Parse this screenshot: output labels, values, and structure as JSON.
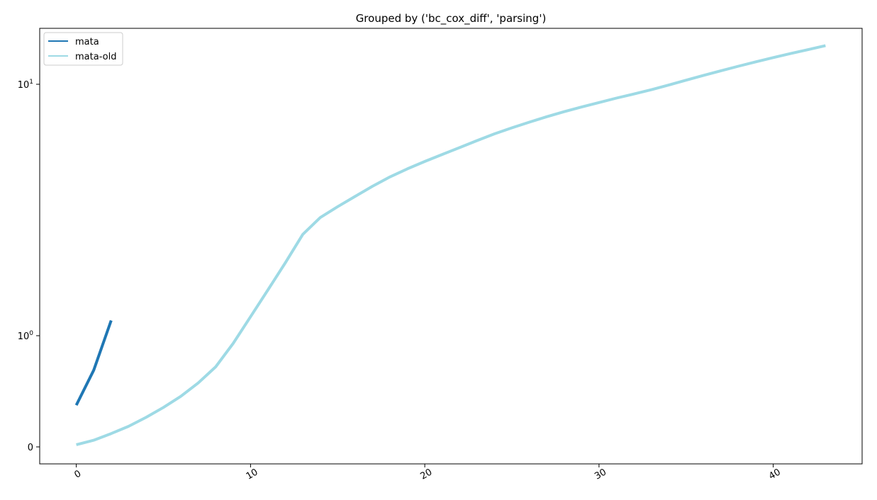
{
  "chart_data": {
    "type": "line",
    "title": "Grouped by ('bc_cox_diff', 'parsing')",
    "xlabel": "",
    "ylabel": "",
    "xlim": [
      -2.1,
      45.1
    ],
    "x_ticks": [
      {
        "value": 0,
        "label": "0"
      },
      {
        "value": 10,
        "label": "10"
      },
      {
        "value": 20,
        "label": "20"
      },
      {
        "value": 30,
        "label": "30"
      },
      {
        "value": 40,
        "label": "40"
      }
    ],
    "y_scale": "symlog",
    "y_ticks": [
      {
        "value": 0,
        "base": "",
        "exp": "",
        "plain": "0"
      },
      {
        "value": 1,
        "base": "10",
        "exp": "0",
        "plain": ""
      },
      {
        "value": 10,
        "base": "10",
        "exp": "1",
        "plain": ""
      }
    ],
    "grid": false,
    "legend_position": "upper-left",
    "series": [
      {
        "name": "mata",
        "color": "#1f77b4",
        "x": [
          0,
          1,
          2
        ],
        "y": [
          0.375,
          0.69,
          1.15
        ]
      },
      {
        "name": "mata-old",
        "color": "#9edae5",
        "x": [
          0,
          1,
          2,
          3,
          4,
          5,
          6,
          7,
          8,
          9,
          10,
          11,
          12,
          13,
          14,
          15,
          16,
          17,
          18,
          19,
          20,
          21,
          22,
          23,
          24,
          25,
          26,
          27,
          28,
          29,
          30,
          31,
          32,
          33,
          34,
          35,
          36,
          37,
          38,
          39,
          40,
          41,
          42,
          43
        ],
        "y": [
          0.02,
          0.06,
          0.12,
          0.185,
          0.265,
          0.355,
          0.455,
          0.575,
          0.72,
          0.93,
          1.19,
          1.52,
          1.95,
          2.53,
          2.95,
          3.26,
          3.58,
          3.93,
          4.28,
          4.61,
          4.93,
          5.26,
          5.6,
          5.97,
          6.35,
          6.71,
          7.07,
          7.43,
          7.78,
          8.12,
          8.46,
          8.81,
          9.15,
          9.51,
          9.93,
          10.38,
          10.85,
          11.32,
          11.8,
          12.28,
          12.77,
          13.25,
          13.73,
          14.25
        ]
      }
    ]
  }
}
